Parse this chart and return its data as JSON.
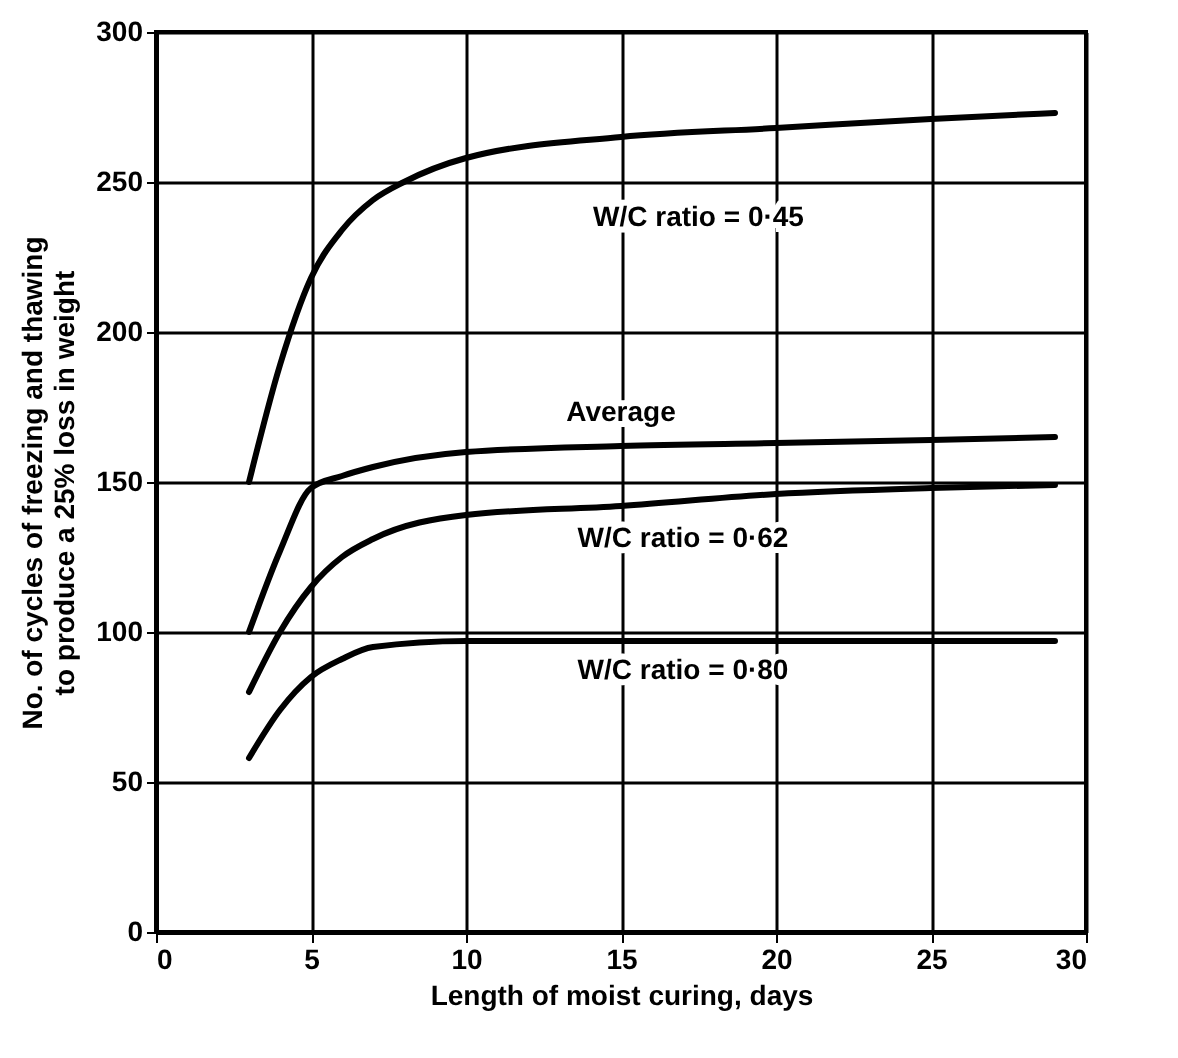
{
  "chart_data": {
    "type": "line",
    "xlabel": "Length of moist curing, days",
    "ylabel": "No. of cycles of freezing and thawing\nto produce a 25% loss in weight",
    "series": [
      {
        "name": "W/C ratio = 0·45",
        "color": "#000000",
        "x": [
          3,
          4,
          5,
          6,
          7,
          8,
          10,
          15,
          20,
          25,
          29
        ],
        "values": [
          150,
          189,
          218,
          234,
          244,
          250,
          258,
          265,
          268,
          271,
          273
        ]
      },
      {
        "name": "Average",
        "color": "#000000",
        "x": [
          3,
          4,
          5,
          6,
          7,
          10,
          15,
          20,
          25,
          29
        ],
        "values": [
          100,
          127,
          148,
          152,
          155,
          160,
          162,
          163,
          164,
          165
        ]
      },
      {
        "name": "W/C ratio = 0·62",
        "color": "#000000",
        "x": [
          3,
          4,
          5,
          6,
          7,
          10,
          15,
          20,
          25,
          29
        ],
        "values": [
          80,
          100,
          115,
          125,
          131,
          139,
          142,
          146,
          148,
          149
        ]
      },
      {
        "name": "W/C ratio = 0·80",
        "color": "#000000",
        "x": [
          3,
          4,
          5,
          6,
          7,
          10,
          15,
          20,
          25,
          29
        ],
        "values": [
          58,
          74,
          85,
          91,
          95,
          97,
          97,
          97,
          97,
          97
        ]
      }
    ],
    "xlim": [
      0,
      30
    ],
    "xticks": [
      0,
      5,
      10,
      15,
      20,
      25,
      30
    ],
    "ylim": [
      0,
      300
    ],
    "yticks": [
      0,
      50,
      100,
      150,
      200,
      250,
      300
    ],
    "grid": true,
    "marker": "none",
    "line_style": "solid"
  }
}
